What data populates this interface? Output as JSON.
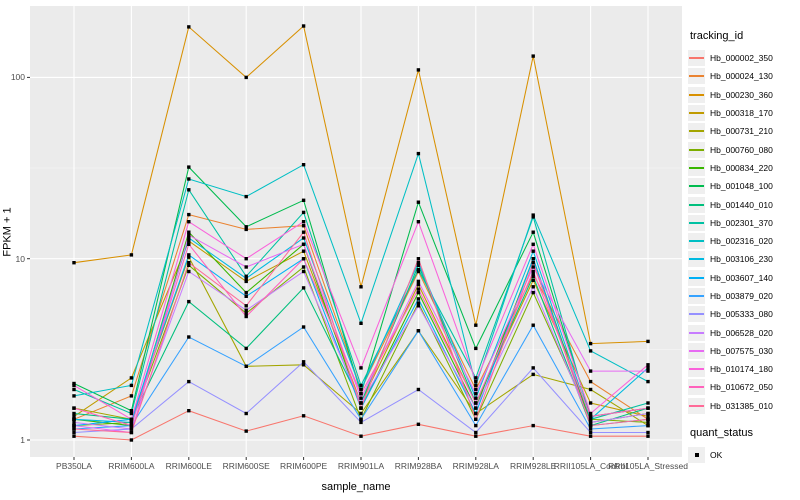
{
  "figure": {
    "panel_bg": "#ebebeb",
    "grid_major_color": "#ffffff",
    "grid_minor_color": "#f5f5f5",
    "tick_color": "#333333",
    "axis_text_color": "#4d4d4d",
    "point_color": "#000000"
  },
  "y_axis": {
    "label": "FPKM + 1",
    "ticks": [
      "100",
      "10",
      "1"
    ]
  },
  "x_axis": {
    "label": "sample_name"
  },
  "legend": {
    "title": "tracking_id",
    "quant_title": "quant_status",
    "quant_value": "OK"
  },
  "chart_data": {
    "type": "line",
    "log_y": true,
    "ylabel": "FPKM + 1",
    "xlabel": "sample_name",
    "yticks": [
      1,
      10,
      100
    ],
    "y_minor_ticks": [
      3.162,
      31.62
    ],
    "ylim": [
      0.81,
      248
    ],
    "grid": true,
    "legend_position": "right",
    "point_shape": "square",
    "point_color": "#000000",
    "categories": [
      "PB350LA",
      "RRIM600LA",
      "RRIM600LE",
      "RRIM600SE",
      "RRIM600PE",
      "RRIM901LA",
      "RRIM928BA",
      "RRIM928LA",
      "RRIM928LE",
      "RRII105LA_Control",
      "RRII105LA_Stressed"
    ],
    "series": [
      {
        "name": "Hb_000002_350",
        "color": "#F8766D",
        "values": [
          1.05,
          1.0,
          1.45,
          1.12,
          1.36,
          1.05,
          1.22,
          1.05,
          1.2,
          1.05,
          1.05
        ]
      },
      {
        "name": "Hb_000024_130",
        "color": "#EA8331",
        "values": [
          1.3,
          1.75,
          17.5,
          14.5,
          15.2,
          1.9,
          8.5,
          1.9,
          8.2,
          2.1,
          1.3
        ]
      },
      {
        "name": "Hb_000230_360",
        "color": "#D89000",
        "values": [
          9.5,
          10.5,
          190,
          100,
          192,
          7.0,
          110,
          4.3,
          131,
          3.4,
          3.5
        ]
      },
      {
        "name": "Hb_000318_170",
        "color": "#C09B00",
        "values": [
          1.35,
          2.2,
          12.5,
          7.5,
          11,
          1.6,
          7.2,
          1.6,
          7.6,
          1.6,
          1.35
        ]
      },
      {
        "name": "Hb_000731_210",
        "color": "#A3A500",
        "values": [
          1.5,
          1.3,
          10.2,
          2.55,
          2.6,
          1.4,
          4.0,
          1.4,
          2.3,
          1.9,
          1.2
        ]
      },
      {
        "name": "Hb_000760_080",
        "color": "#7CAE00",
        "values": [
          1.2,
          1.25,
          9.2,
          5.0,
          9.0,
          1.3,
          5.7,
          1.3,
          6.5,
          1.3,
          1.25
        ]
      },
      {
        "name": "Hb_000834_220",
        "color": "#39B600",
        "values": [
          1.3,
          1.2,
          14,
          6.5,
          12,
          1.5,
          6.5,
          1.5,
          10,
          1.25,
          1.4
        ]
      },
      {
        "name": "Hb_001048_100",
        "color": "#00BB4E",
        "values": [
          2.05,
          1.45,
          32,
          15,
          21,
          1.8,
          20.5,
          3.2,
          14,
          1.35,
          1.5
        ]
      },
      {
        "name": "Hb_001440_010",
        "color": "#00BF7D",
        "values": [
          1.4,
          1.3,
          5.8,
          3.2,
          6.9,
          1.6,
          9.2,
          1.6,
          8.0,
          1.2,
          1.5
        ]
      },
      {
        "name": "Hb_002301_370",
        "color": "#00C1A3",
        "values": [
          1.9,
          1.4,
          24,
          8.0,
          18,
          2.0,
          8.7,
          2.2,
          17,
          1.3,
          1.6
        ]
      },
      {
        "name": "Hb_002316_020",
        "color": "#00BFC4",
        "values": [
          1.75,
          2.0,
          27.5,
          22,
          33,
          4.4,
          38,
          2.0,
          17.4,
          3.1,
          2.1
        ]
      },
      {
        "name": "Hb_003106_230",
        "color": "#00BAE0",
        "values": [
          1.3,
          1.25,
          13,
          7.8,
          13,
          1.9,
          9.5,
          1.7,
          11,
          1.3,
          2.5
        ]
      },
      {
        "name": "Hb_003607_140",
        "color": "#00B0F6",
        "values": [
          1.2,
          1.3,
          10.5,
          6.2,
          10,
          1.5,
          6.0,
          1.4,
          10,
          1.2,
          1.3
        ]
      },
      {
        "name": "Hb_003879_020",
        "color": "#35A2FF",
        "values": [
          1.15,
          1.2,
          3.7,
          2.55,
          4.2,
          1.3,
          4.0,
          1.2,
          4.3,
          1.15,
          1.2
        ]
      },
      {
        "name": "Hb_005333_080",
        "color": "#9590FF",
        "values": [
          1.1,
          1.15,
          2.1,
          1.4,
          2.7,
          1.25,
          1.9,
          1.1,
          2.5,
          1.1,
          1.1
        ]
      },
      {
        "name": "Hb_006528_020",
        "color": "#C77CFF",
        "values": [
          1.25,
          1.15,
          8.5,
          5.2,
          8.5,
          1.6,
          5.5,
          1.5,
          7.0,
          1.25,
          1.4
        ]
      },
      {
        "name": "Hb_007575_030",
        "color": "#E76BF3",
        "values": [
          1.2,
          1.1,
          13.5,
          9.0,
          12,
          1.7,
          7.5,
          1.8,
          9.0,
          2.4,
          2.4
        ]
      },
      {
        "name": "Hb_010174_180",
        "color": "#FA62DB",
        "values": [
          2.0,
          1.3,
          16,
          10,
          16,
          2.5,
          16,
          2.1,
          12,
          1.4,
          2.6
        ]
      },
      {
        "name": "Hb_010672_050",
        "color": "#FF62BC",
        "values": [
          1.5,
          1.2,
          12,
          4.8,
          10,
          1.8,
          6.8,
          1.6,
          8.5,
          1.35,
          1.5
        ]
      },
      {
        "name": "Hb_031385_010",
        "color": "#FF6A98",
        "values": [
          1.15,
          1.1,
          9.5,
          5.5,
          14,
          1.5,
          10,
          1.3,
          9.5,
          1.2,
          1.3
        ]
      }
    ]
  }
}
